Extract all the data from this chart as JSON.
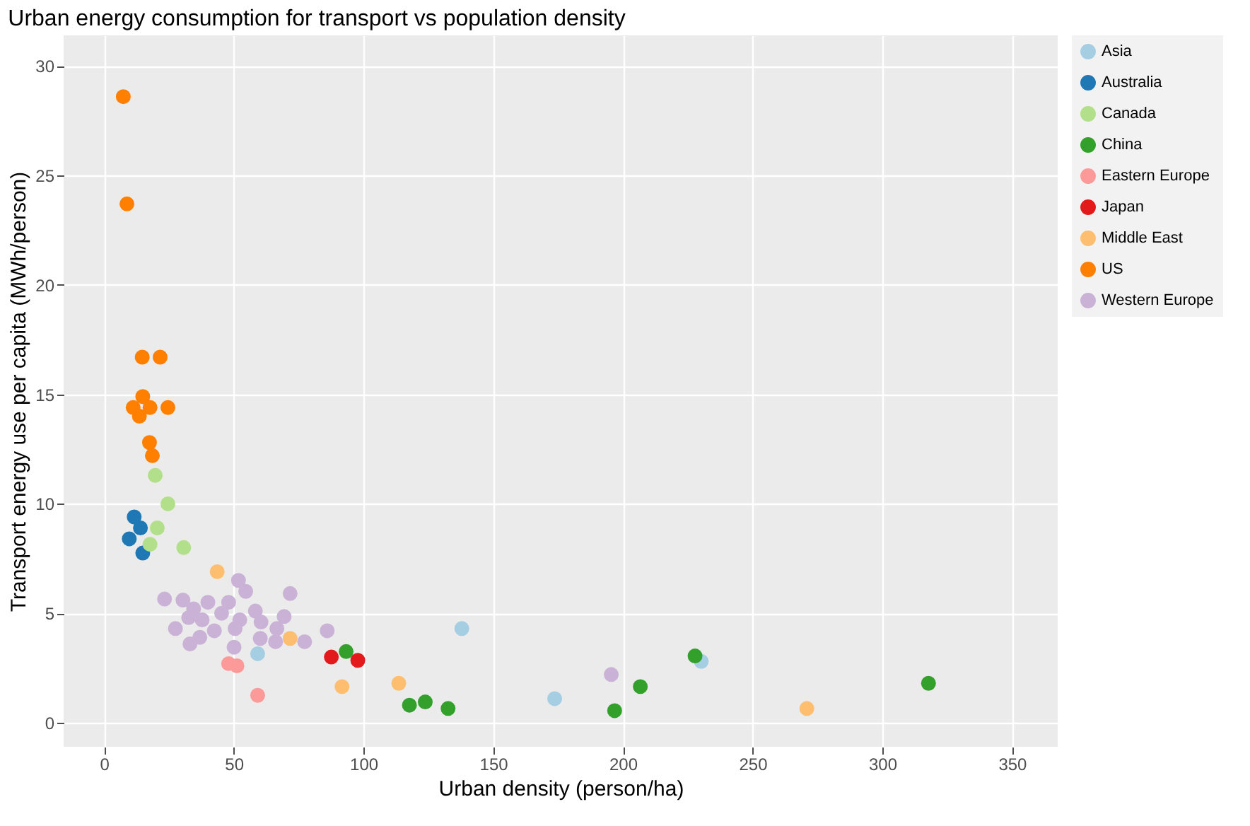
{
  "chart_data": {
    "type": "scatter",
    "title": "Urban energy consumption for transport vs population density",
    "xlabel": "Urban density (person/ha)",
    "ylabel": "Transport energy use per capita (MWh/person)",
    "xlim": [
      -15.6,
      367.6
    ],
    "ylim": [
      -1.1,
      31.4
    ],
    "xticks": [
      0,
      50,
      100,
      150,
      200,
      250,
      300,
      350
    ],
    "yticks": [
      0,
      5,
      10,
      15,
      20,
      25,
      30
    ],
    "grid": true,
    "legend": "right",
    "marker": "circle",
    "series": [
      {
        "name": "Asia",
        "color": "#a6cee3",
        "x": [
          59.2,
          137.9,
          173.7,
          230.2
        ],
        "values": [
          3.15,
          4.3,
          1.1,
          2.8
        ]
      },
      {
        "name": "Australia",
        "color": "#1f78b4",
        "x": [
          11.6,
          14.0,
          9.7,
          14.9
        ],
        "values": [
          9.4,
          8.9,
          8.4,
          7.75
        ]
      },
      {
        "name": "Canada",
        "color": "#b2df8a",
        "x": [
          19.7,
          24.6,
          20.5,
          17.7,
          30.7
        ],
        "values": [
          11.3,
          10.0,
          8.9,
          8.15,
          8.0
        ]
      },
      {
        "name": "China",
        "color": "#33a02c",
        "x": [
          93.3,
          117.7,
          123.8,
          132.6,
          196.8,
          206.7,
          227.8,
          317.8
        ],
        "values": [
          3.25,
          0.8,
          0.95,
          0.65,
          0.55,
          1.65,
          3.05,
          1.8
        ]
      },
      {
        "name": "Eastern Europe",
        "color": "#fb9a99",
        "x": [
          48.0,
          51.2,
          59.2
        ],
        "values": [
          2.7,
          2.6,
          1.25
        ]
      },
      {
        "name": "Japan",
        "color": "#e31a1c",
        "x": [
          87.6,
          97.8
        ],
        "values": [
          3.0,
          2.85
        ]
      },
      {
        "name": "Middle East",
        "color": "#fdbf6f",
        "x": [
          43.6,
          71.7,
          91.7,
          113.6,
          270.9
        ],
        "values": [
          6.9,
          3.85,
          1.65,
          1.8,
          0.65
        ]
      },
      {
        "name": "US",
        "color": "#ff7f00",
        "x": [
          7.4,
          8.8,
          14.7,
          21.6,
          11.2,
          14.9,
          17.7,
          13.6,
          24.6,
          17.5,
          18.6
        ],
        "values": [
          28.6,
          23.7,
          16.7,
          16.7,
          14.4,
          14.9,
          14.4,
          14.0,
          14.4,
          12.8,
          12.2
        ]
      },
      {
        "name": "Western Europe",
        "color": "#cab2d6",
        "x": [
          51.8,
          54.6,
          71.7,
          23.3,
          30.4,
          40.0,
          48.0,
          34.5,
          45.3,
          58.3,
          32.6,
          37.8,
          52.3,
          60.5,
          69.4,
          27.5,
          42.5,
          50.5,
          66.6,
          86.0,
          36.9,
          60.2,
          66.1,
          77.3,
          33.1,
          50.1,
          195.5
        ],
        "values": [
          6.5,
          6.0,
          5.9,
          5.65,
          5.6,
          5.5,
          5.5,
          5.2,
          5.0,
          5.1,
          4.8,
          4.7,
          4.7,
          4.6,
          4.85,
          4.3,
          4.2,
          4.3,
          4.3,
          4.2,
          3.9,
          3.85,
          3.7,
          3.7,
          3.6,
          3.45,
          2.2
        ]
      }
    ]
  }
}
